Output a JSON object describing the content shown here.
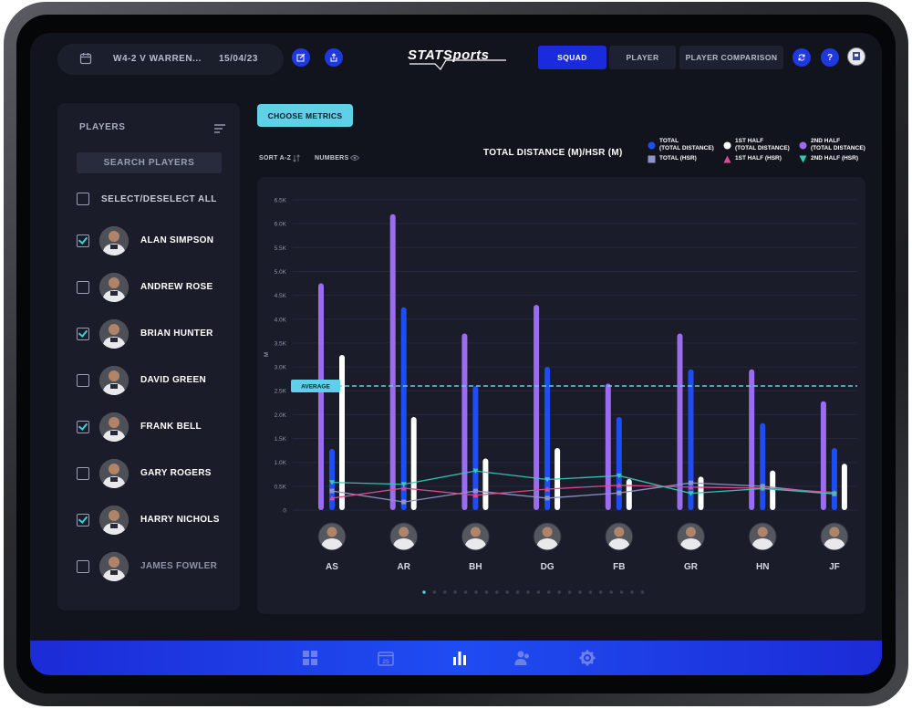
{
  "header": {
    "match_name": "W4-2 V WARREN...",
    "match_date": "15/04/23",
    "logo": "STATSports",
    "tabs": [
      {
        "label": "SQUAD",
        "active": true
      },
      {
        "label": "PLAYER",
        "active": false
      },
      {
        "label": "PLAYER COMPARISON",
        "active": false
      }
    ],
    "help_label": "?"
  },
  "players_panel": {
    "title": "PLAYERS",
    "search_placeholder": "SEARCH PLAYERS",
    "select_all_label": "SELECT/DESELECT ALL",
    "players": [
      {
        "name": "ALAN SIMPSON",
        "checked": true
      },
      {
        "name": "ANDREW ROSE",
        "checked": false
      },
      {
        "name": "BRIAN HUNTER",
        "checked": true
      },
      {
        "name": "DAVID GREEN",
        "checked": false
      },
      {
        "name": "FRANK BELL",
        "checked": true
      },
      {
        "name": "GARY ROGERS",
        "checked": false
      },
      {
        "name": "HARRY NICHOLS",
        "checked": true
      },
      {
        "name": "JAMES FOWLER",
        "checked": false
      }
    ]
  },
  "main": {
    "choose_metrics_label": "CHOOSE METRICS",
    "sort_label": "SORT A-Z",
    "numbers_label": "NUMBERS",
    "average_label": "AVERAGE"
  },
  "legend": [
    {
      "label": "TOTAL",
      "sub": "(TOTAL DISTANCE)",
      "color": "#1e4cf5",
      "shape": "circle"
    },
    {
      "label": "1ST HALF",
      "sub": "(TOTAL DISTANCE)",
      "color": "#ffffff",
      "shape": "circle"
    },
    {
      "label": "2ND HALF",
      "sub": "(TOTAL DISTANCE)",
      "color": "#9b6cf0",
      "shape": "circle"
    },
    {
      "label": "TOTAL (HSR)",
      "sub": "",
      "color": "#8f93c8",
      "shape": "square"
    },
    {
      "label": "1ST HALF (HSR)",
      "sub": "",
      "color": "#e0498f",
      "shape": "triangle-up"
    },
    {
      "label": "2ND HALF (HSR)",
      "sub": "",
      "color": "#38c7b4",
      "shape": "triangle-down"
    }
  ],
  "chart_data": {
    "type": "bar",
    "title": "TOTAL DISTANCE (M)/HSR (M)",
    "ylabel": "M",
    "ylim": [
      0,
      6500
    ],
    "yticks": [
      "0",
      "0.5K",
      "1.0K",
      "1.5K",
      "2.0K",
      "2.5K",
      "3.0K",
      "3.5K",
      "4.0K",
      "4.5K",
      "5.0K",
      "5.5K",
      "6.0K",
      "6.5K"
    ],
    "categories": [
      "AS",
      "AR",
      "BH",
      "DG",
      "FB",
      "GR",
      "HN",
      "JF"
    ],
    "average": 2600,
    "bar_series": [
      {
        "name": "2ND HALF (TOTAL DISTANCE)",
        "color": "#9b6cf0",
        "values": [
          4750,
          6200,
          3700,
          4300,
          2650,
          3700,
          2950,
          2280
        ]
      },
      {
        "name": "TOTAL (TOTAL DISTANCE)",
        "color": "#1e4cf5",
        "values": [
          1280,
          4250,
          2600,
          3000,
          1950,
          2950,
          1820,
          1300
        ]
      },
      {
        "name": "1ST HALF (TOTAL DISTANCE)",
        "color": "#ffffff",
        "values": [
          3250,
          1950,
          1080,
          1300,
          650,
          700,
          830,
          970
        ]
      }
    ],
    "line_series": [
      {
        "name": "TOTAL (HSR)",
        "color": "#8f93c8",
        "values": [
          400,
          170,
          400,
          250,
          360,
          570,
          500,
          340
        ]
      },
      {
        "name": "1ST HALF (HSR)",
        "color": "#e0498f",
        "values": [
          250,
          460,
          310,
          440,
          520,
          480,
          460,
          370
        ]
      },
      {
        "name": "2ND HALF (HSR)",
        "color": "#38c7b4",
        "values": [
          580,
          540,
          820,
          640,
          720,
          350,
          450,
          340
        ]
      }
    ],
    "pagination": {
      "pages": 22,
      "current": 1
    }
  },
  "bottom_nav": [
    "dashboard-icon",
    "calendar-icon",
    "bar-chart-icon",
    "users-icon",
    "settings-icon"
  ],
  "bottom_nav_calendar_day": "25"
}
